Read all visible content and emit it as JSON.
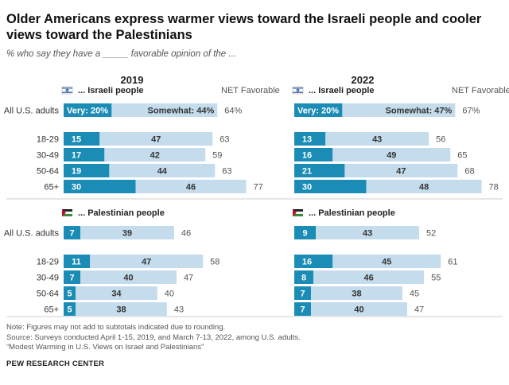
{
  "title": "Older Americans express warmer views toward the Israeli people and cooler views toward the Palestinians",
  "subtitle": "% who say they have a _____ favorable opinion of the ...",
  "colors": {
    "very": "#1a8cb5",
    "somewhat": "#c5dced",
    "text_dark": "#333333",
    "text_muted": "#555555",
    "rule": "#cccccc"
  },
  "chart_data": {
    "type": "bar",
    "stacked": true,
    "orientation": "horizontal",
    "years": [
      "2019",
      "2022"
    ],
    "net_label": "NET Favorable",
    "xlim": [
      0,
      100
    ],
    "categories": [
      "All U.S. adults",
      "18-29",
      "30-49",
      "50-64",
      "65+"
    ],
    "panels": [
      {
        "section": "israeli",
        "label": "... Israeli people",
        "flag_icon": "israel-flag-icon",
        "columns": [
          {
            "year": "2019",
            "very": [
              20,
              15,
              17,
              19,
              30
            ],
            "somewhat": [
              44,
              47,
              42,
              44,
              46
            ],
            "net": [
              "64%",
              "63",
              "59",
              "63",
              "77"
            ],
            "very_labels": [
              "Very: 20%",
              "15",
              "17",
              "19",
              "30"
            ],
            "somewhat_labels": [
              "Somewhat: 44%",
              "47",
              "42",
              "44",
              "46"
            ]
          },
          {
            "year": "2022",
            "very": [
              20,
              13,
              16,
              21,
              30
            ],
            "somewhat": [
              47,
              43,
              49,
              47,
              48
            ],
            "net": [
              "67%",
              "56",
              "65",
              "68",
              "78"
            ],
            "very_labels": [
              "Very: 20%",
              "13",
              "16",
              "21",
              "30"
            ],
            "somewhat_labels": [
              "Somewhat: 47%",
              "43",
              "49",
              "47",
              "48"
            ]
          }
        ]
      },
      {
        "section": "palestinian",
        "label": "... Palestinian people",
        "flag_icon": "palestine-flag-icon",
        "columns": [
          {
            "year": "2019",
            "very": [
              7,
              11,
              7,
              5,
              5
            ],
            "somewhat": [
              39,
              47,
              40,
              34,
              38
            ],
            "net": [
              "46",
              "58",
              "47",
              "40",
              "43"
            ],
            "very_labels": [
              "7",
              "11",
              "7",
              "5",
              "5"
            ],
            "somewhat_labels": [
              "39",
              "47",
              "40",
              "34",
              "38"
            ]
          },
          {
            "year": "2022",
            "very": [
              9,
              16,
              8,
              7,
              7
            ],
            "somewhat": [
              43,
              45,
              46,
              38,
              40
            ],
            "net": [
              "52",
              "61",
              "55",
              "45",
              "47"
            ],
            "very_labels": [
              "9",
              "16",
              "8",
              "7",
              "7"
            ],
            "somewhat_labels": [
              "43",
              "45",
              "46",
              "38",
              "40"
            ]
          }
        ]
      }
    ]
  },
  "notes": {
    "note": "Note: Figures may not add to subtotals indicated due to rounding.",
    "source": "Source: Surveys conducted April 1-15, 2019, and March 7-13, 2022, among U.S. adults.",
    "report": "“Modest Warming in U.S. Views on Israel and Palestinians”",
    "org": "PEW RESEARCH CENTER"
  }
}
